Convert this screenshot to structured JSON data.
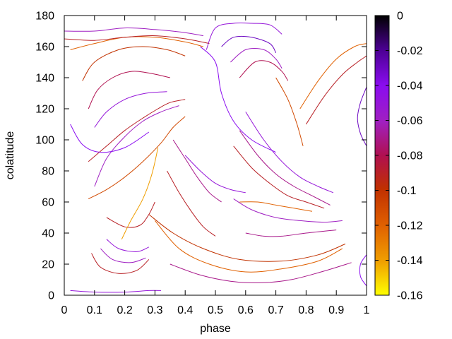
{
  "chart_data": {
    "type": "line",
    "title": "",
    "xlabel": "phase",
    "ylabel": "colatitude",
    "xlim": [
      0,
      1
    ],
    "ylim": [
      0,
      180
    ],
    "x_ticks": [
      "0",
      "0.1",
      "0.2",
      "0.3",
      "0.4",
      "0.5",
      "0.6",
      "0.7",
      "0.8",
      "0.9",
      "1"
    ],
    "y_ticks": [
      "0",
      "20",
      "40",
      "60",
      "80",
      "100",
      "120",
      "140",
      "160",
      "180"
    ],
    "colorbar": {
      "range": [
        -0.16,
        0
      ],
      "ticks": [
        "0",
        "-0.02",
        "-0.04",
        "-0.06",
        "-0.08",
        "-0.1",
        "-0.12",
        "-0.14",
        "-0.16"
      ],
      "palette": "black-purple-red-orange-yellow"
    },
    "series": [
      {
        "color_value": -0.05,
        "x": [
          0.02,
          0.1,
          0.2,
          0.28,
          0.32
        ],
        "y": [
          3,
          2,
          2,
          3,
          3
        ]
      },
      {
        "color_value": -0.07,
        "x": [
          0.35,
          0.45,
          0.55,
          0.65,
          0.75,
          0.85,
          0.95
        ],
        "y": [
          20,
          13,
          9,
          8,
          10,
          15,
          21
        ]
      },
      {
        "color_value": -0.12,
        "x": [
          0.3,
          0.38,
          0.48,
          0.6,
          0.72,
          0.84,
          0.92
        ],
        "y": [
          48,
          30,
          20,
          15,
          17,
          22,
          30
        ]
      },
      {
        "color_value": -0.1,
        "x": [
          0.28,
          0.36,
          0.46,
          0.58,
          0.72,
          0.84,
          0.93
        ],
        "y": [
          52,
          40,
          30,
          23,
          22,
          26,
          33
        ]
      },
      {
        "color_value": -0.09,
        "x": [
          0.09,
          0.12,
          0.18,
          0.24,
          0.28
        ],
        "y": [
          27,
          18,
          14,
          16,
          23
        ]
      },
      {
        "color_value": -0.06,
        "x": [
          0.12,
          0.16,
          0.22,
          0.27
        ],
        "y": [
          30,
          23,
          21,
          24
        ]
      },
      {
        "color_value": -0.05,
        "x": [
          0.14,
          0.18,
          0.24,
          0.28
        ],
        "y": [
          36,
          30,
          28,
          31
        ]
      },
      {
        "color_value": -0.09,
        "x": [
          0.14,
          0.2,
          0.25,
          0.28,
          0.3
        ],
        "y": [
          50,
          44,
          45,
          52,
          60
        ]
      },
      {
        "color_value": -0.14,
        "x": [
          0.19,
          0.22,
          0.26,
          0.29,
          0.31
        ],
        "y": [
          36,
          48,
          62,
          78,
          95
        ]
      },
      {
        "color_value": -0.11,
        "x": [
          0.08,
          0.14,
          0.2,
          0.26,
          0.32,
          0.36,
          0.4
        ],
        "y": [
          62,
          68,
          76,
          86,
          98,
          108,
          115
        ]
      },
      {
        "color_value": -0.09,
        "x": [
          0.08,
          0.14,
          0.2,
          0.26,
          0.31,
          0.35,
          0.4
        ],
        "y": [
          86,
          96,
          106,
          114,
          120,
          124,
          126
        ]
      },
      {
        "color_value": -0.06,
        "x": [
          0.1,
          0.14,
          0.2,
          0.26,
          0.32,
          0.38
        ],
        "y": [
          70,
          88,
          102,
          112,
          118,
          122
        ]
      },
      {
        "color_value": -0.04,
        "x": [
          0.02,
          0.06,
          0.12,
          0.2,
          0.28
        ],
        "y": [
          110,
          97,
          92,
          95,
          105
        ]
      },
      {
        "color_value": -0.05,
        "x": [
          0.1,
          0.14,
          0.2,
          0.27,
          0.34
        ],
        "y": [
          108,
          118,
          126,
          130,
          131
        ]
      },
      {
        "color_value": -0.08,
        "x": [
          0.08,
          0.11,
          0.16,
          0.22,
          0.28,
          0.35
        ],
        "y": [
          120,
          132,
          140,
          144,
          143,
          140
        ]
      },
      {
        "color_value": -0.1,
        "x": [
          0.06,
          0.1,
          0.18,
          0.26,
          0.34,
          0.4
        ],
        "y": [
          138,
          150,
          158,
          160,
          158,
          154
        ]
      },
      {
        "color_value": -0.12,
        "x": [
          0.02,
          0.1,
          0.2,
          0.3,
          0.4,
          0.46
        ],
        "y": [
          158,
          162,
          166,
          166,
          163,
          160
        ]
      },
      {
        "color_value": -0.09,
        "x": [
          0.0,
          0.1,
          0.2,
          0.3,
          0.4,
          0.48
        ],
        "y": [
          165,
          164,
          166,
          167,
          165,
          162
        ]
      },
      {
        "color_value": -0.06,
        "x": [
          0.0,
          0.1,
          0.2,
          0.3,
          0.4,
          0.46
        ],
        "y": [
          170,
          170,
          172,
          171,
          169,
          167
        ]
      },
      {
        "color_value": -0.05,
        "x": [
          0.47,
          0.5,
          0.56,
          0.62,
          0.68,
          0.72
        ],
        "y": [
          158,
          172,
          175,
          175,
          174,
          168
        ]
      },
      {
        "color_value": -0.03,
        "x": [
          0.52,
          0.56,
          0.62,
          0.68,
          0.7
        ],
        "y": [
          160,
          166,
          166,
          162,
          156
        ]
      },
      {
        "color_value": -0.06,
        "x": [
          0.55,
          0.6,
          0.66,
          0.7,
          0.72
        ],
        "y": [
          150,
          158,
          158,
          152,
          146
        ]
      },
      {
        "color_value": -0.08,
        "x": [
          0.58,
          0.63,
          0.68,
          0.72,
          0.74
        ],
        "y": [
          140,
          150,
          150,
          144,
          138
        ]
      },
      {
        "color_value": -0.12,
        "x": [
          0.78,
          0.84,
          0.9,
          0.96,
          1.0
        ],
        "y": [
          120,
          138,
          152,
          160,
          162
        ]
      },
      {
        "color_value": -0.09,
        "x": [
          0.8,
          0.86,
          0.92,
          0.97,
          1.0
        ],
        "y": [
          110,
          128,
          142,
          150,
          154
        ]
      },
      {
        "color_value": -0.11,
        "x": [
          0.7,
          0.74,
          0.77,
          0.79
        ],
        "y": [
          140,
          126,
          110,
          96
        ]
      },
      {
        "color_value": -0.05,
        "x": [
          0.6,
          0.66,
          0.72,
          0.78,
          0.84,
          0.89
        ],
        "y": [
          118,
          100,
          86,
          76,
          70,
          66
        ]
      },
      {
        "color_value": -0.07,
        "x": [
          0.58,
          0.64,
          0.7,
          0.76,
          0.82,
          0.88
        ],
        "y": [
          106,
          90,
          78,
          70,
          64,
          58
        ]
      },
      {
        "color_value": -0.09,
        "x": [
          0.56,
          0.62,
          0.68,
          0.74,
          0.8,
          0.86
        ],
        "y": [
          96,
          82,
          72,
          64,
          60,
          56
        ]
      },
      {
        "color_value": -0.06,
        "x": [
          0.56,
          0.62,
          0.7,
          0.78,
          0.86,
          0.92
        ],
        "y": [
          62,
          55,
          50,
          48,
          47,
          48
        ]
      },
      {
        "color_value": -0.12,
        "x": [
          0.58,
          0.64,
          0.7,
          0.76,
          0.82
        ],
        "y": [
          60,
          60,
          58,
          56,
          54
        ]
      },
      {
        "color_value": -0.07,
        "x": [
          0.6,
          0.66,
          0.72,
          0.8,
          0.9
        ],
        "y": [
          40,
          38,
          38,
          40,
          42
        ]
      },
      {
        "color_value": -0.04,
        "x": [
          0.45,
          0.5,
          0.52,
          0.56,
          0.62,
          0.7
        ],
        "y": [
          160,
          150,
          130,
          112,
          100,
          92
        ]
      },
      {
        "color_value": -0.05,
        "x": [
          0.4,
          0.45,
          0.5,
          0.55,
          0.6
        ],
        "y": [
          90,
          80,
          72,
          68,
          66
        ]
      },
      {
        "color_value": -0.07,
        "x": [
          0.36,
          0.4,
          0.44,
          0.48,
          0.52
        ],
        "y": [
          100,
          88,
          76,
          66,
          60
        ]
      },
      {
        "color_value": -0.09,
        "x": [
          0.34,
          0.38,
          0.42,
          0.46,
          0.5
        ],
        "y": [
          80,
          66,
          54,
          44,
          38
        ]
      },
      {
        "color_value": -0.03,
        "x": [
          1.0,
          0.98,
          0.97,
          0.98,
          1.0
        ],
        "y": [
          134,
          124,
          114,
          104,
          96
        ]
      },
      {
        "color_value": -0.04,
        "x": [
          1.0,
          0.98,
          0.98,
          1.0
        ],
        "y": [
          26,
          20,
          12,
          6
        ]
      }
    ]
  }
}
